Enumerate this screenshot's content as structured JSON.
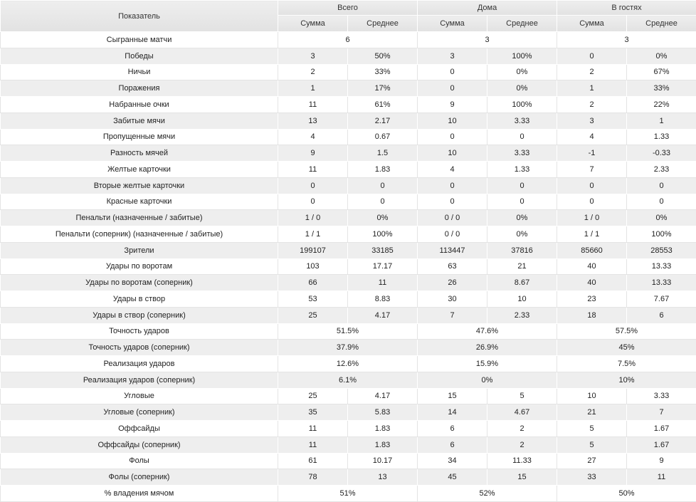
{
  "header": {
    "indicator": "Показатель",
    "groups": [
      "Всего",
      "Дома",
      "В гостях"
    ],
    "sum": "Сумма",
    "avg": "Среднее"
  },
  "rows": [
    {
      "label": "Сыгранные матчи",
      "merged": true,
      "values": [
        "6",
        "3",
        "3"
      ]
    },
    {
      "label": "Победы",
      "values": [
        "3",
        "50%",
        "3",
        "100%",
        "0",
        "0%"
      ]
    },
    {
      "label": "Ничьи",
      "values": [
        "2",
        "33%",
        "0",
        "0%",
        "2",
        "67%"
      ]
    },
    {
      "label": "Поражения",
      "values": [
        "1",
        "17%",
        "0",
        "0%",
        "1",
        "33%"
      ]
    },
    {
      "label": "Набранные очки",
      "values": [
        "11",
        "61%",
        "9",
        "100%",
        "2",
        "22%"
      ]
    },
    {
      "label": "Забитые мячи",
      "values": [
        "13",
        "2.17",
        "10",
        "3.33",
        "3",
        "1"
      ]
    },
    {
      "label": "Пропущенные мячи",
      "values": [
        "4",
        "0.67",
        "0",
        "0",
        "4",
        "1.33"
      ]
    },
    {
      "label": "Разность мячей",
      "values": [
        "9",
        "1.5",
        "10",
        "3.33",
        "-1",
        "-0.33"
      ]
    },
    {
      "label": "Желтые карточки",
      "values": [
        "11",
        "1.83",
        "4",
        "1.33",
        "7",
        "2.33"
      ]
    },
    {
      "label": "Вторые желтые карточки",
      "values": [
        "0",
        "0",
        "0",
        "0",
        "0",
        "0"
      ]
    },
    {
      "label": "Красные карточки",
      "values": [
        "0",
        "0",
        "0",
        "0",
        "0",
        "0"
      ]
    },
    {
      "label": "Пенальти (назначенные / забитые)",
      "values": [
        "1 / 0",
        "0%",
        "0 / 0",
        "0%",
        "1 / 0",
        "0%"
      ]
    },
    {
      "label": "Пенальти (соперник) (назначенные / забитые)",
      "values": [
        "1 / 1",
        "100%",
        "0 / 0",
        "0%",
        "1 / 1",
        "100%"
      ]
    },
    {
      "label": "Зрители",
      "values": [
        "199107",
        "33185",
        "113447",
        "37816",
        "85660",
        "28553"
      ]
    },
    {
      "label": "Удары по воротам",
      "values": [
        "103",
        "17.17",
        "63",
        "21",
        "40",
        "13.33"
      ]
    },
    {
      "label": "Удары по воротам (соперник)",
      "values": [
        "66",
        "11",
        "26",
        "8.67",
        "40",
        "13.33"
      ]
    },
    {
      "label": "Удары в створ",
      "values": [
        "53",
        "8.83",
        "30",
        "10",
        "23",
        "7.67"
      ]
    },
    {
      "label": "Удары в створ (соперник)",
      "values": [
        "25",
        "4.17",
        "7",
        "2.33",
        "18",
        "6"
      ]
    },
    {
      "label": "Точность ударов",
      "merged": true,
      "values": [
        "51.5%",
        "47.6%",
        "57.5%"
      ]
    },
    {
      "label": "Точность ударов (соперник)",
      "merged": true,
      "values": [
        "37.9%",
        "26.9%",
        "45%"
      ]
    },
    {
      "label": "Реализация ударов",
      "merged": true,
      "values": [
        "12.6%",
        "15.9%",
        "7.5%"
      ]
    },
    {
      "label": "Реализация ударов (соперник)",
      "merged": true,
      "values": [
        "6.1%",
        "0%",
        "10%"
      ]
    },
    {
      "label": "Угловые",
      "values": [
        "25",
        "4.17",
        "15",
        "5",
        "10",
        "3.33"
      ]
    },
    {
      "label": "Угловые (соперник)",
      "values": [
        "35",
        "5.83",
        "14",
        "4.67",
        "21",
        "7"
      ]
    },
    {
      "label": "Оффсайды",
      "values": [
        "11",
        "1.83",
        "6",
        "2",
        "5",
        "1.67"
      ]
    },
    {
      "label": "Оффсайды (соперник)",
      "values": [
        "11",
        "1.83",
        "6",
        "2",
        "5",
        "1.67"
      ]
    },
    {
      "label": "Фолы",
      "values": [
        "61",
        "10.17",
        "34",
        "11.33",
        "27",
        "9"
      ]
    },
    {
      "label": "Фолы (соперник)",
      "values": [
        "78",
        "13",
        "45",
        "15",
        "33",
        "11"
      ]
    },
    {
      "label": "% владения мячом",
      "merged": true,
      "values": [
        "51%",
        "52%",
        "50%"
      ]
    }
  ]
}
